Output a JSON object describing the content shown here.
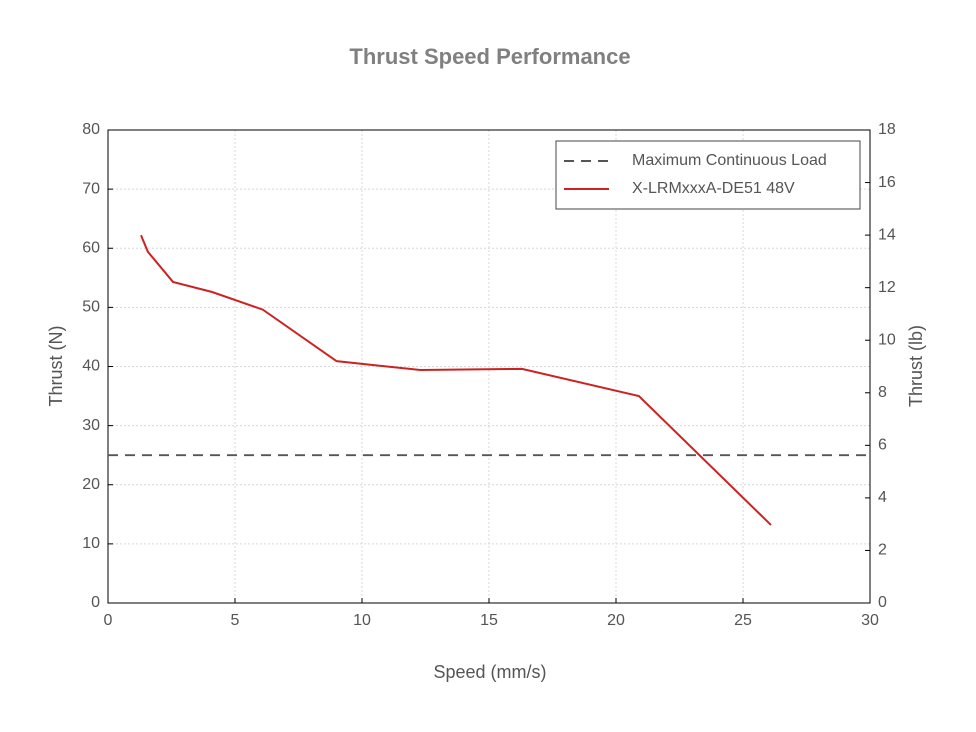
{
  "chart_data": {
    "type": "line",
    "title": "Thrust Speed Performance",
    "xlabel": "Speed (mm/s)",
    "ylabel": "Thrust (N)",
    "y2label": "Thrust (lb)",
    "xlim": [
      0,
      30
    ],
    "xticks": [
      0,
      5,
      10,
      15,
      20,
      25,
      30
    ],
    "ylim": [
      0,
      80
    ],
    "yticks": [
      0,
      10,
      20,
      30,
      40,
      50,
      60,
      70,
      80
    ],
    "y2lim": [
      0,
      18
    ],
    "y2ticks": [
      0,
      2,
      4,
      6,
      8,
      10,
      12,
      14,
      16,
      18
    ],
    "grid": true,
    "legend": "upper right",
    "series": [
      {
        "name": "Maximum Continuous Load",
        "color": "#555555",
        "dash": true,
        "x": [
          0,
          30
        ],
        "values": [
          25,
          25
        ]
      },
      {
        "name": "X-LRMxxxA-DE51 48V",
        "color": "#cc2222",
        "dash": false,
        "x": [
          1.3,
          1.57,
          2.56,
          4.1,
          6.1,
          9.0,
          12.3,
          16.3,
          20.9,
          26.1
        ],
        "values": [
          62.2,
          59.4,
          54.3,
          52.6,
          49.6,
          40.9,
          39.4,
          39.6,
          35.0,
          13.2
        ]
      }
    ]
  }
}
